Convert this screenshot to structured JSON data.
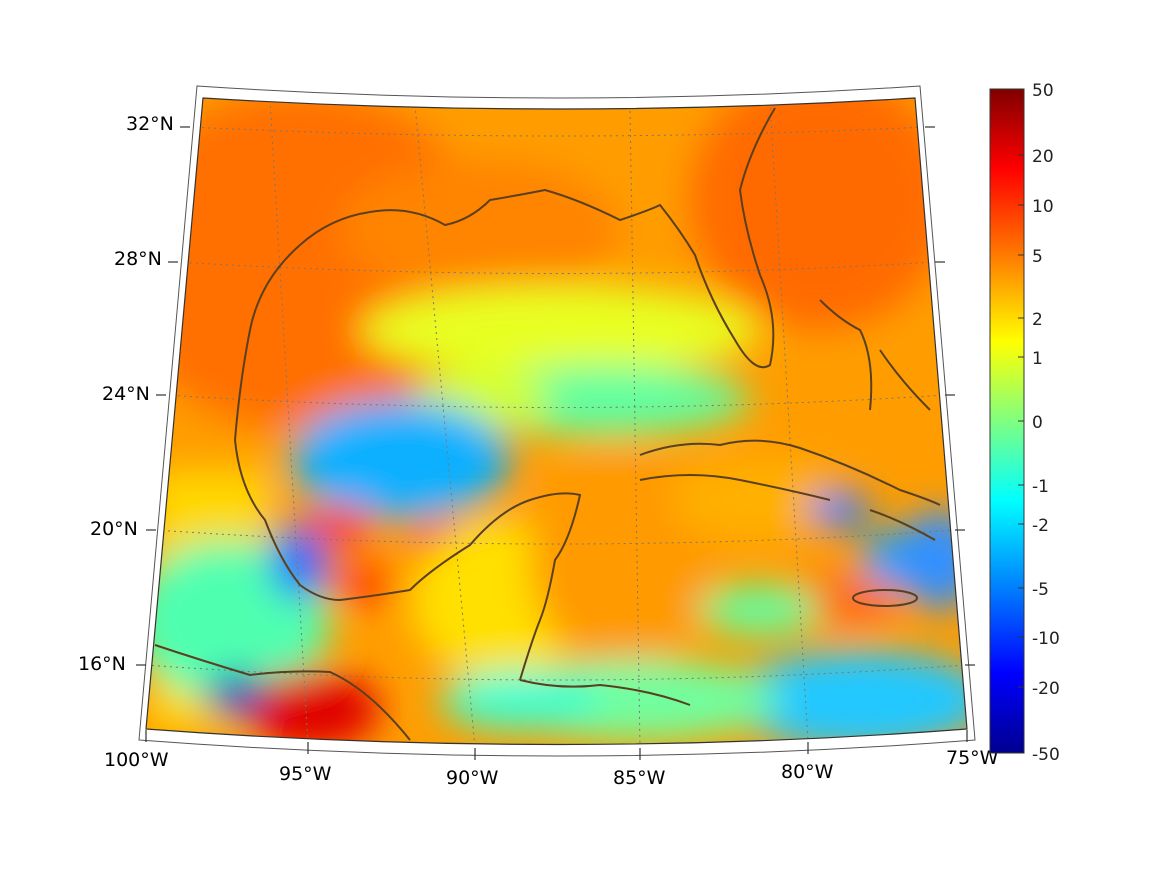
{
  "map": {
    "lat_labels": [
      "32°N",
      "28°N",
      "24°N",
      "20°N",
      "16°N"
    ],
    "lon_labels": [
      "100°W",
      "95°W",
      "90°W",
      "85°W",
      "80°W",
      "75°W"
    ],
    "extent": {
      "lon_min": -100,
      "lon_max": -75,
      "lat_min": 14,
      "lat_max": 33
    },
    "graticule_lats": [
      16,
      20,
      24,
      28,
      32
    ],
    "graticule_lons": [
      -95,
      -90,
      -85,
      -80
    ],
    "coastline_color": "#5a4020"
  },
  "colorbar": {
    "tick_labels": [
      "50",
      "20",
      "10",
      "5",
      "2",
      "1",
      "0",
      "-1",
      "-2",
      "-5",
      "-10",
      "-20",
      "-50"
    ],
    "colormap": "jet",
    "color_top": "#800000",
    "color_bottom": "#00008f"
  }
}
